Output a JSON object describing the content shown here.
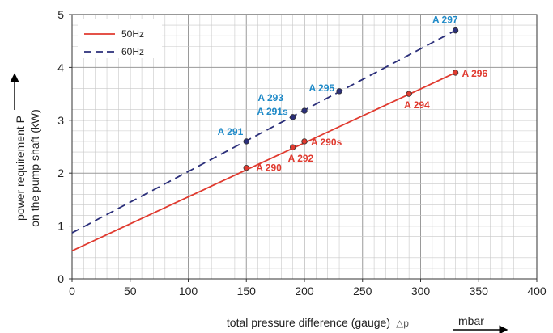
{
  "chart_data": {
    "type": "line",
    "xlabel": "total pressure difference (gauge)",
    "xlabel_symbol": "△p",
    "xunit": "mbar",
    "ylabel_line1": "power requirement P",
    "ylabel_line2": "on the pump shaft (kW)",
    "xlim": [
      0,
      400
    ],
    "ylim": [
      0,
      5
    ],
    "x_ticks": [
      0,
      50,
      100,
      150,
      200,
      250,
      300,
      350,
      400
    ],
    "y_ticks": [
      0,
      1,
      2,
      3,
      4,
      5
    ],
    "grid": true,
    "legend_position": "top-left",
    "series": [
      {
        "name": "50Hz",
        "color": "#e03a2f",
        "dash": "solid",
        "line": [
          [
            0,
            0.53
          ],
          [
            330,
            3.9
          ]
        ],
        "points": [
          {
            "label": "A 290",
            "x": 150,
            "y": 2.1
          },
          {
            "label": "A 292",
            "x": 190,
            "y": 2.49
          },
          {
            "label": "A 290s",
            "x": 200,
            "y": 2.6
          },
          {
            "label": "A 294",
            "x": 290,
            "y": 3.5
          },
          {
            "label": "A 296",
            "x": 330,
            "y": 3.9
          }
        ]
      },
      {
        "name": "60Hz",
        "color": "#2b2f7a",
        "label_color": "#1f8ac8",
        "dash": "dashed",
        "line": [
          [
            0,
            0.87
          ],
          [
            330,
            4.7
          ]
        ],
        "points": [
          {
            "label": "A 291",
            "x": 150,
            "y": 2.6
          },
          {
            "label": "A 291s",
            "x": 190,
            "y": 3.06
          },
          {
            "label": "A 293",
            "x": 200,
            "y": 3.18
          },
          {
            "label": "A 295",
            "x": 230,
            "y": 3.55
          },
          {
            "label": "A 297",
            "x": 330,
            "y": 4.7
          }
        ]
      }
    ]
  }
}
